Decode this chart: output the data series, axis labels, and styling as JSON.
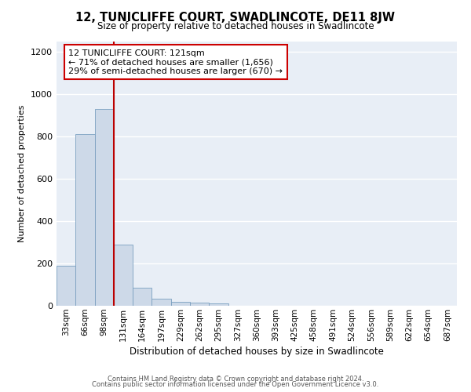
{
  "title": "12, TUNICLIFFE COURT, SWADLINCOTE, DE11 8JW",
  "subtitle": "Size of property relative to detached houses in Swadlincote",
  "xlabel": "Distribution of detached houses by size in Swadlincote",
  "ylabel": "Number of detached properties",
  "bar_color": "#cdd9e8",
  "bar_edge_color": "#7a9fc0",
  "background_color": "#e8eef6",
  "grid_color": "#ffffff",
  "bins": [
    "33sqm",
    "66sqm",
    "98sqm",
    "131sqm",
    "164sqm",
    "197sqm",
    "229sqm",
    "262sqm",
    "295sqm",
    "327sqm",
    "360sqm",
    "393sqm",
    "425sqm",
    "458sqm",
    "491sqm",
    "524sqm",
    "556sqm",
    "589sqm",
    "622sqm",
    "654sqm",
    "687sqm"
  ],
  "values": [
    190,
    810,
    930,
    290,
    85,
    35,
    20,
    15,
    10,
    0,
    0,
    0,
    0,
    0,
    0,
    0,
    0,
    0,
    0,
    0,
    0
  ],
  "vline_color": "#bb0000",
  "annotation_line1": "12 TUNICLIFFE COURT: 121sqm",
  "annotation_line2": "← 71% of detached houses are smaller (1,656)",
  "annotation_line3": "29% of semi-detached houses are larger (670) →",
  "annotation_box_color": "#ffffff",
  "annotation_box_edge_color": "#cc0000",
  "ylim": [
    0,
    1250
  ],
  "yticks": [
    0,
    200,
    400,
    600,
    800,
    1000,
    1200
  ],
  "footer1": "Contains HM Land Registry data © Crown copyright and database right 2024.",
  "footer2": "Contains public sector information licensed under the Open Government Licence v3.0."
}
